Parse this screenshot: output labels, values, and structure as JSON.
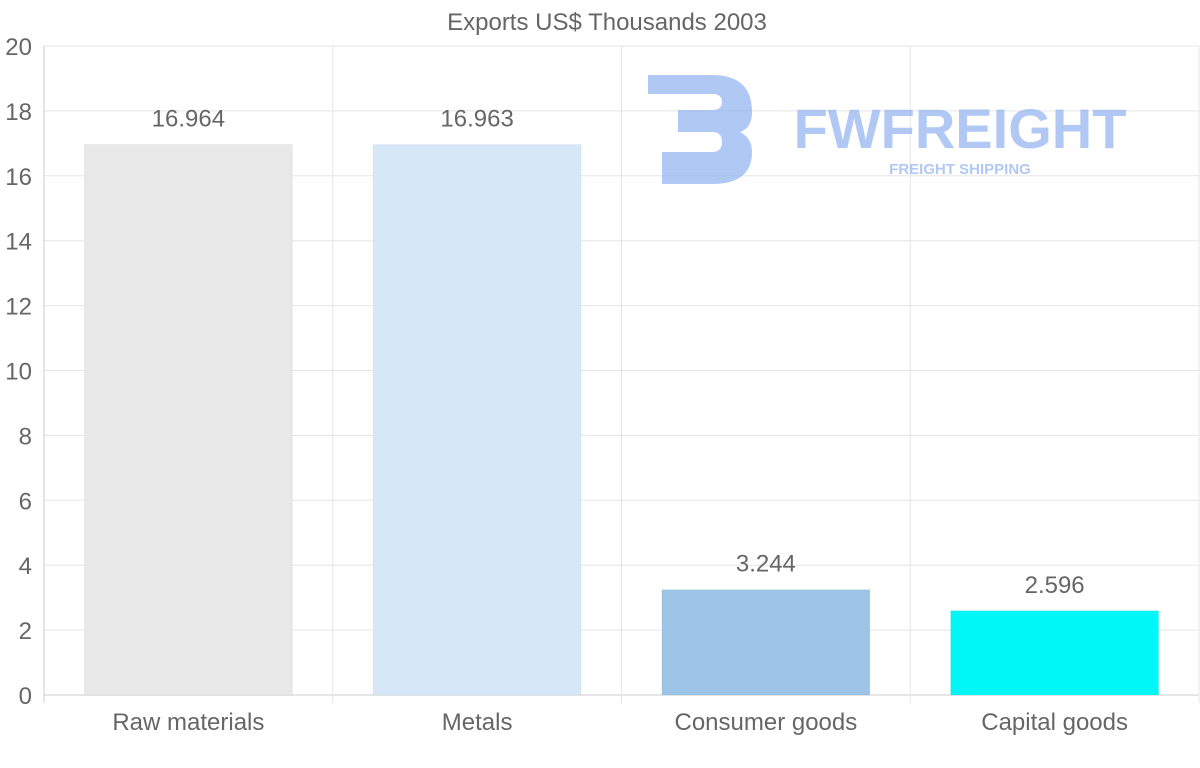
{
  "chart_data": {
    "type": "bar",
    "title": "Exports US$ Thousands 2003",
    "categories": [
      "Raw materials",
      "Metals",
      "Consumer goods",
      "Capital goods"
    ],
    "values": [
      16.964,
      16.963,
      3.244,
      2.596
    ],
    "value_labels": [
      "16.964",
      "16.963",
      "3.244",
      "2.596"
    ],
    "bar_colors": [
      "#e8e8e8",
      "#d6e8f8",
      "#9cc4e6",
      "#00f7f7"
    ],
    "ylim": [
      0,
      20
    ],
    "yticks": [
      0,
      2,
      4,
      6,
      8,
      10,
      12,
      14,
      16,
      18,
      20
    ],
    "xlabel": "",
    "ylabel": "",
    "grid": true,
    "legend": "none"
  },
  "watermark": {
    "brand": "FWFREIGHT",
    "tagline": "FREIGHT SHIPPING",
    "color": "#8fb2ef"
  },
  "colors": {
    "grid": "#e5e5e5",
    "axis": "#cccccc",
    "text": "#666666"
  }
}
